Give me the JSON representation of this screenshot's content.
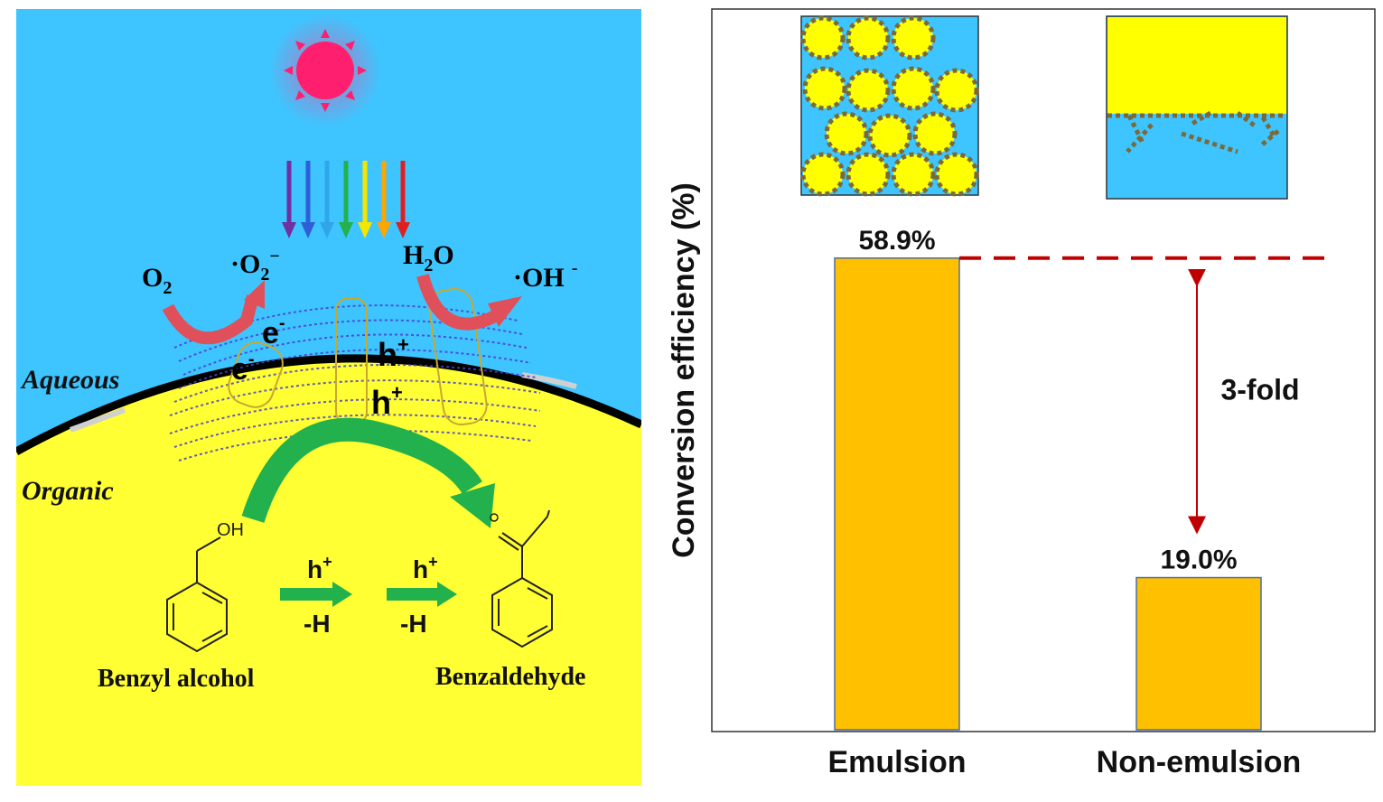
{
  "scheme": {
    "labels": {
      "aqueous": "Aqueous",
      "organic": "Organic",
      "o2": "O",
      "o2_sub": "2",
      "superoxide": "·O",
      "superoxide_sub": "2",
      "superoxide_sup": "−",
      "water": "H",
      "water_sub": "2",
      "water_tail": "O",
      "hydroxyl": "·OH",
      "hydroxyl_sup": "-",
      "electron1": "e",
      "electron2": "e",
      "electron_sup": "-",
      "hole1": "h",
      "hole2": "h",
      "hole_sup": "+",
      "oh_group": "OH",
      "step1_top": "h",
      "step1_bottom": "-H",
      "step2_top": "h",
      "step2_bottom": "-H",
      "step_sup": "+",
      "reactant": "Benzyl alcohol",
      "product": "Benzaldehyde"
    },
    "colors": {
      "aqueous": "#3ec5ff",
      "organic": "#ffff33",
      "sun": "#ff1f6e",
      "arrow_green": "#22b14c",
      "arrow_red": "#e0505a"
    },
    "light_colors": [
      "#7030a0",
      "#2e5fd6",
      "#2fa6e8",
      "#22b14c",
      "#f5e600",
      "#ffa500",
      "#e02020"
    ]
  },
  "chart_data": {
    "type": "bar",
    "categories": [
      "Emulsion",
      "Non-emulsion"
    ],
    "values": [
      58.9,
      19.0
    ],
    "value_labels": [
      "58.9%",
      "19.0%"
    ],
    "ylabel": "Conversion efficiency (%)",
    "ylim": [
      0,
      90
    ],
    "annotation": "3-fold",
    "bar_color": "#ffc000",
    "reference_line_color": "#c00000",
    "inset_colors": {
      "water": "#3ec5ff",
      "oil": "#ffff00",
      "particle": "#7a6a3a"
    }
  }
}
